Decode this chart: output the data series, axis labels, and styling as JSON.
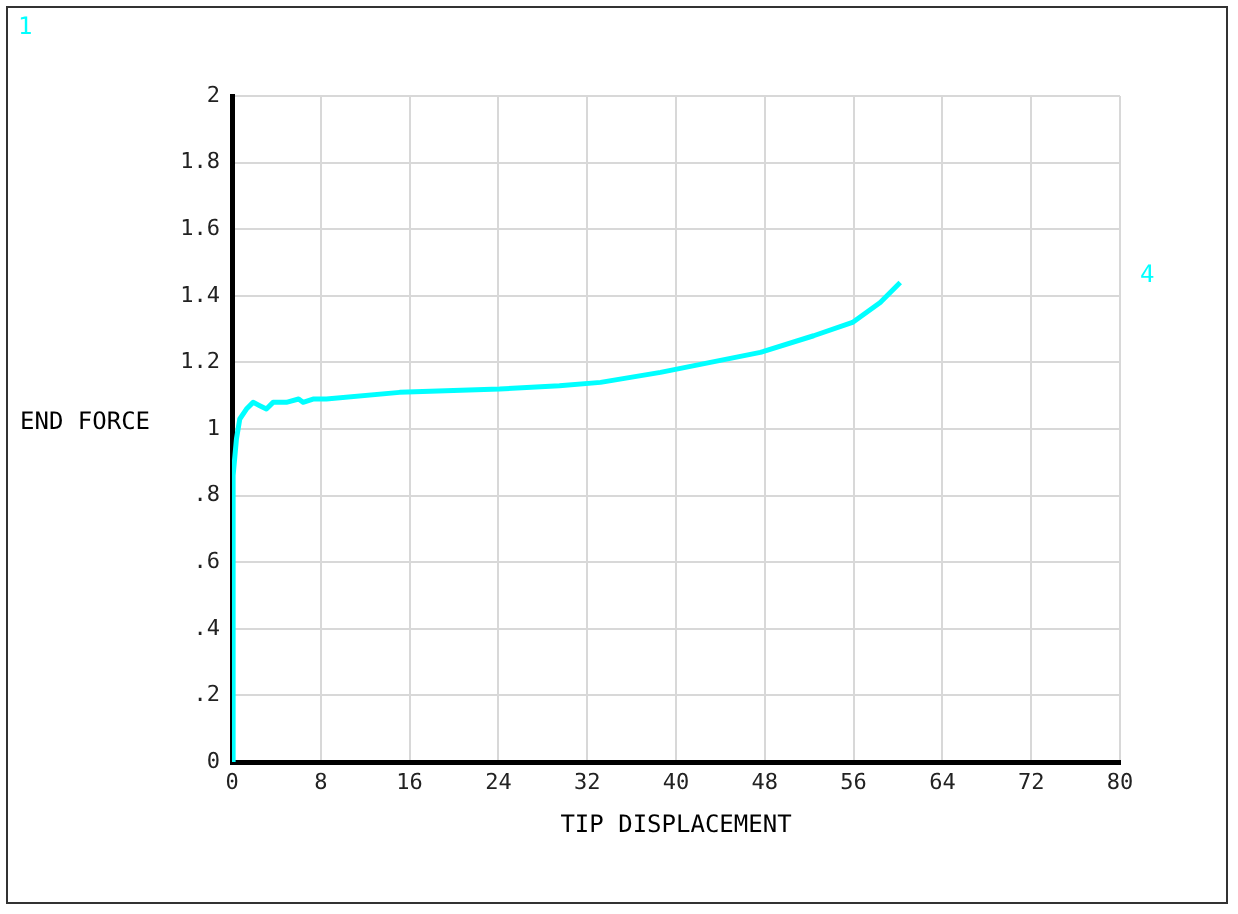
{
  "chart_data": {
    "type": "line",
    "xlabel": "TIP DISPLACEMENT",
    "ylabel": "END FORCE",
    "annotations": [
      "1"
    ],
    "xlim": [
      0,
      80
    ],
    "xticks": [
      0,
      8,
      16,
      24,
      32,
      40,
      48,
      56,
      64,
      72,
      80
    ],
    "ylim": [
      0,
      2
    ],
    "yticks": [
      0,
      {
        "value": 0.2,
        "label": ".2"
      },
      {
        "value": 0.4,
        "label": ".4"
      },
      {
        "value": 0.6,
        "label": ".6"
      },
      {
        "value": 0.8,
        "label": ".8"
      },
      1,
      1.2,
      1.4,
      1.6,
      1.8,
      2
    ],
    "grid": true,
    "marker": "none",
    "line_style": "solid",
    "series": [
      {
        "name": "4",
        "color": "#00ffff",
        "x": [
          0,
          0.1,
          0.4,
          0.7,
          1.3,
          1.9,
          2.5,
          3.1,
          3.7,
          4.9,
          6.0,
          6.4,
          7.3,
          8.1,
          8.5,
          15.1,
          24.1,
          29.5,
          33.2,
          38.6,
          47.6,
          52.4,
          55.9,
          58.4,
          60.2
        ],
        "values": [
          0,
          0.86,
          0.97,
          1.03,
          1.06,
          1.08,
          1.07,
          1.06,
          1.08,
          1.08,
          1.09,
          1.08,
          1.09,
          1.09,
          1.09,
          1.11,
          1.12,
          1.13,
          1.14,
          1.17,
          1.23,
          1.28,
          1.32,
          1.38,
          1.44
        ]
      }
    ]
  }
}
